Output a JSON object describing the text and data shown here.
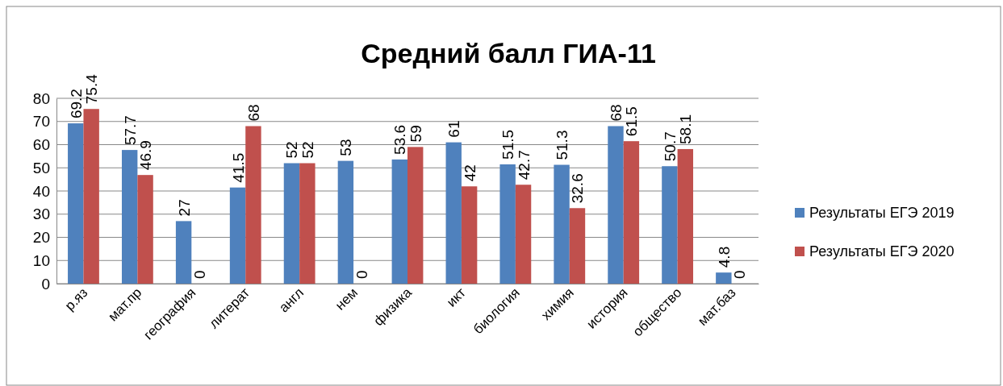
{
  "chart_data": {
    "type": "bar",
    "title": "Средний балл ГИА-11",
    "categories": [
      "р.яз",
      "мат.пр",
      "география",
      "литерат",
      "англ",
      "нем",
      "физика",
      "икт",
      "биология",
      "химия",
      "история",
      "общество",
      "мат.баз"
    ],
    "series": [
      {
        "name": "Результаты ЕГЭ 2019",
        "color": "#4f81bd",
        "values": [
          69.2,
          57.7,
          27,
          41.5,
          52,
          53,
          53.6,
          61,
          51.5,
          51.3,
          68,
          50.7,
          4.8
        ]
      },
      {
        "name": "Результаты ЕГЭ 2020",
        "color": "#c0504d",
        "values": [
          75.4,
          46.9,
          0,
          68,
          52,
          0,
          59,
          42,
          42.7,
          32.6,
          61.5,
          58.1,
          0
        ]
      }
    ],
    "ylim": [
      0,
      80
    ],
    "yticks": [
      0,
      10,
      20,
      30,
      40,
      50,
      60,
      70,
      80
    ],
    "grid": "y",
    "legend": "right",
    "data_labels": true
  }
}
